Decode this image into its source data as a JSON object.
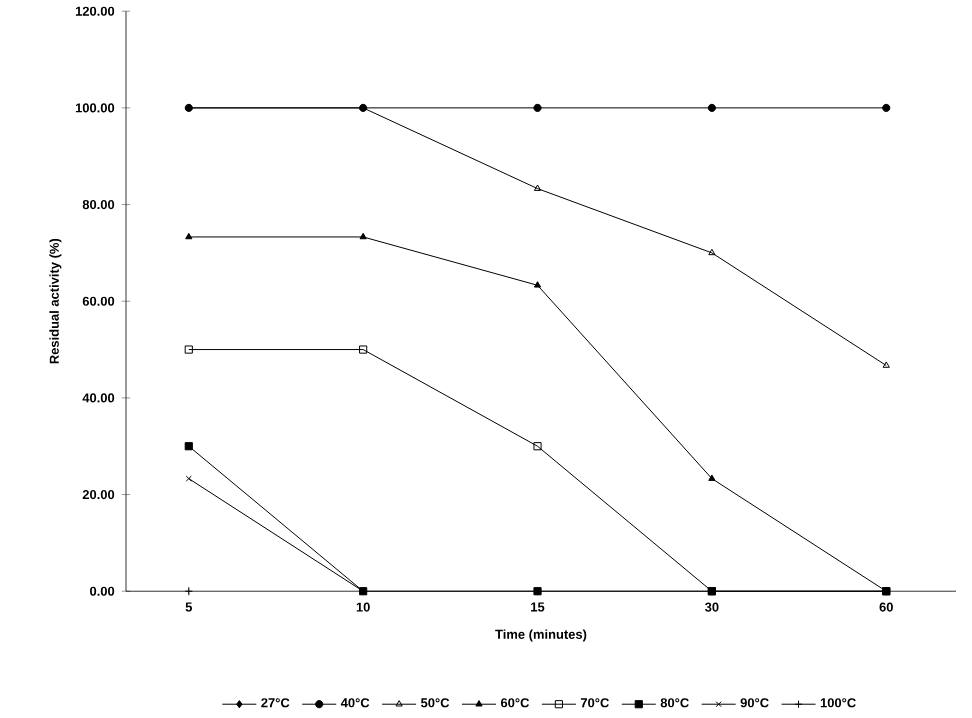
{
  "chart_data": {
    "type": "line",
    "xlabel": "Time (minutes)",
    "ylabel": "Residual activity (%)",
    "categories": [
      "5",
      "10",
      "15",
      "30",
      "60"
    ],
    "ylim": [
      0,
      120
    ],
    "yticks": [
      {
        "value": 0,
        "label": "0.00"
      },
      {
        "value": 20,
        "label": "20.00"
      },
      {
        "value": 40,
        "label": "40.00"
      },
      {
        "value": 60,
        "label": "60.00"
      },
      {
        "value": 80,
        "label": "80.00"
      },
      {
        "value": 100,
        "label": "100.00"
      },
      {
        "value": 120,
        "label": "120.00"
      }
    ],
    "legend": "bottom",
    "grid": false,
    "line_style": "solid",
    "series": [
      {
        "name": "27°C",
        "color": "#000000",
        "marker": "diamond",
        "values": [
          null,
          null,
          null,
          null,
          null
        ]
      },
      {
        "name": "40°C",
        "color": "#000000",
        "marker": "circle",
        "values": [
          100,
          100,
          100,
          100,
          100
        ]
      },
      {
        "name": "50°C",
        "color": "#000000",
        "marker": "triangle-open",
        "values": [
          100,
          100,
          83.3,
          70,
          46.7
        ]
      },
      {
        "name": "60°C",
        "color": "#000000",
        "marker": "triangle",
        "values": [
          73.3,
          73.3,
          63.3,
          23.3,
          0
        ]
      },
      {
        "name": "70°C",
        "color": "#000000",
        "marker": "square-open",
        "values": [
          50,
          50,
          30,
          0,
          0
        ]
      },
      {
        "name": "80°C",
        "color": "#000000",
        "marker": "square",
        "values": [
          30,
          0,
          0,
          0,
          0
        ]
      },
      {
        "name": "90°C",
        "color": "#000000",
        "marker": "cross",
        "values": [
          23.3,
          0,
          null,
          null,
          null
        ]
      },
      {
        "name": "100°C",
        "color": "#000000",
        "marker": "plus",
        "values": [
          0,
          null,
          null,
          null,
          null
        ]
      }
    ]
  }
}
